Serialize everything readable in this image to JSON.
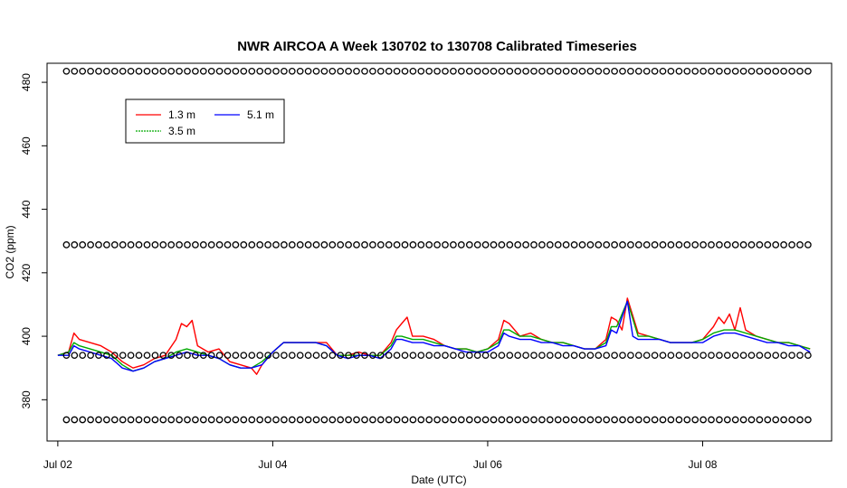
{
  "chart_data": {
    "type": "line",
    "title": "NWR AIRCOA A  Week 130702 to 130708  Calibrated Timeseries",
    "xlabel": "Date (UTC)",
    "ylabel": "CO2 (ppm)",
    "xlim": [
      -0.1,
      7.2
    ],
    "ylim": [
      367,
      486
    ],
    "x_ticks": [
      0,
      2,
      4,
      6
    ],
    "x_tick_labels": [
      "Jul 02",
      "Jul 04",
      "Jul 06",
      "Jul 08"
    ],
    "y_ticks": [
      380,
      400,
      420,
      440,
      460,
      480
    ],
    "y_tick_labels": [
      "380",
      "400",
      "420",
      "440",
      "460",
      "480"
    ],
    "legend": {
      "position": "top-left",
      "entries": [
        {
          "label": "1.3 m",
          "color": "#ff0000"
        },
        {
          "label": "3.5 m",
          "color": "#00aa00"
        },
        {
          "label": "5.1 m",
          "color": "#0000ff"
        }
      ]
    },
    "series": [
      {
        "name": "1.3 m",
        "color": "#ff0000",
        "points": [
          [
            0.0,
            394
          ],
          [
            0.1,
            395
          ],
          [
            0.15,
            401
          ],
          [
            0.2,
            399
          ],
          [
            0.3,
            398
          ],
          [
            0.4,
            397
          ],
          [
            0.5,
            395
          ],
          [
            0.6,
            392
          ],
          [
            0.7,
            390
          ],
          [
            0.8,
            391
          ],
          [
            0.9,
            393
          ],
          [
            1.0,
            394
          ],
          [
            1.1,
            399
          ],
          [
            1.15,
            404
          ],
          [
            1.2,
            403
          ],
          [
            1.25,
            405
          ],
          [
            1.3,
            397
          ],
          [
            1.4,
            395
          ],
          [
            1.5,
            396
          ],
          [
            1.6,
            392
          ],
          [
            1.7,
            391
          ],
          [
            1.8,
            390
          ],
          [
            1.85,
            388
          ],
          [
            1.9,
            391
          ],
          [
            2.0,
            395
          ],
          [
            2.1,
            398
          ],
          [
            2.2,
            398
          ],
          [
            2.3,
            398
          ],
          [
            2.4,
            398
          ],
          [
            2.5,
            398
          ],
          [
            2.6,
            394
          ],
          [
            2.7,
            394
          ],
          [
            2.8,
            395
          ],
          [
            2.9,
            394
          ],
          [
            3.0,
            394
          ],
          [
            3.1,
            398
          ],
          [
            3.15,
            402
          ],
          [
            3.2,
            404
          ],
          [
            3.25,
            406
          ],
          [
            3.3,
            400
          ],
          [
            3.4,
            400
          ],
          [
            3.5,
            399
          ],
          [
            3.6,
            397
          ],
          [
            3.7,
            396
          ],
          [
            3.8,
            396
          ],
          [
            3.9,
            395
          ],
          [
            4.0,
            396
          ],
          [
            4.1,
            399
          ],
          [
            4.15,
            405
          ],
          [
            4.2,
            404
          ],
          [
            4.3,
            400
          ],
          [
            4.4,
            401
          ],
          [
            4.5,
            399
          ],
          [
            4.6,
            398
          ],
          [
            4.7,
            398
          ],
          [
            4.8,
            397
          ],
          [
            4.9,
            396
          ],
          [
            5.0,
            396
          ],
          [
            5.1,
            399
          ],
          [
            5.15,
            406
          ],
          [
            5.2,
            405
          ],
          [
            5.25,
            402
          ],
          [
            5.3,
            412
          ],
          [
            5.4,
            401
          ],
          [
            5.5,
            400
          ],
          [
            5.6,
            399
          ],
          [
            5.7,
            398
          ],
          [
            5.8,
            398
          ],
          [
            5.9,
            398
          ],
          [
            6.0,
            399
          ],
          [
            6.1,
            403
          ],
          [
            6.15,
            406
          ],
          [
            6.2,
            404
          ],
          [
            6.25,
            407
          ],
          [
            6.3,
            402
          ],
          [
            6.35,
            409
          ],
          [
            6.4,
            402
          ],
          [
            6.5,
            400
          ],
          [
            6.6,
            399
          ],
          [
            6.7,
            398
          ],
          [
            6.8,
            398
          ],
          [
            6.9,
            397
          ],
          [
            7.0,
            396
          ]
        ]
      },
      {
        "name": "3.5 m",
        "color": "#00aa00",
        "points": [
          [
            0.0,
            394
          ],
          [
            0.1,
            395
          ],
          [
            0.15,
            398
          ],
          [
            0.2,
            397
          ],
          [
            0.3,
            396
          ],
          [
            0.4,
            395
          ],
          [
            0.5,
            394
          ],
          [
            0.6,
            391
          ],
          [
            0.7,
            389
          ],
          [
            0.8,
            390
          ],
          [
            0.9,
            392
          ],
          [
            1.0,
            393
          ],
          [
            1.1,
            395
          ],
          [
            1.2,
            396
          ],
          [
            1.3,
            395
          ],
          [
            1.4,
            394
          ],
          [
            1.5,
            393
          ],
          [
            1.6,
            391
          ],
          [
            1.7,
            390
          ],
          [
            1.8,
            390
          ],
          [
            1.9,
            392
          ],
          [
            2.0,
            395
          ],
          [
            2.1,
            398
          ],
          [
            2.2,
            398
          ],
          [
            2.3,
            398
          ],
          [
            2.4,
            398
          ],
          [
            2.5,
            397
          ],
          [
            2.6,
            394
          ],
          [
            2.7,
            394
          ],
          [
            2.8,
            394
          ],
          [
            2.9,
            394
          ],
          [
            3.0,
            394
          ],
          [
            3.1,
            397
          ],
          [
            3.15,
            400
          ],
          [
            3.2,
            400
          ],
          [
            3.3,
            399
          ],
          [
            3.4,
            399
          ],
          [
            3.5,
            398
          ],
          [
            3.6,
            397
          ],
          [
            3.7,
            396
          ],
          [
            3.8,
            396
          ],
          [
            3.9,
            395
          ],
          [
            4.0,
            396
          ],
          [
            4.1,
            398
          ],
          [
            4.15,
            402
          ],
          [
            4.2,
            402
          ],
          [
            4.3,
            400
          ],
          [
            4.4,
            400
          ],
          [
            4.5,
            399
          ],
          [
            4.6,
            398
          ],
          [
            4.7,
            398
          ],
          [
            4.8,
            397
          ],
          [
            4.9,
            396
          ],
          [
            5.0,
            396
          ],
          [
            5.1,
            398
          ],
          [
            5.15,
            403
          ],
          [
            5.2,
            403
          ],
          [
            5.3,
            411
          ],
          [
            5.4,
            400
          ],
          [
            5.5,
            400
          ],
          [
            5.6,
            399
          ],
          [
            5.7,
            398
          ],
          [
            5.8,
            398
          ],
          [
            5.9,
            398
          ],
          [
            6.0,
            399
          ],
          [
            6.1,
            401
          ],
          [
            6.2,
            402
          ],
          [
            6.3,
            402
          ],
          [
            6.4,
            401
          ],
          [
            6.5,
            400
          ],
          [
            6.6,
            399
          ],
          [
            6.7,
            398
          ],
          [
            6.8,
            398
          ],
          [
            6.9,
            397
          ],
          [
            7.0,
            396
          ]
        ]
      },
      {
        "name": "5.1 m",
        "color": "#0000ff",
        "points": [
          [
            0.0,
            394
          ],
          [
            0.1,
            394
          ],
          [
            0.15,
            397
          ],
          [
            0.2,
            396
          ],
          [
            0.3,
            395
          ],
          [
            0.4,
            394
          ],
          [
            0.5,
            393
          ],
          [
            0.6,
            390
          ],
          [
            0.7,
            389
          ],
          [
            0.8,
            390
          ],
          [
            0.9,
            392
          ],
          [
            1.0,
            393
          ],
          [
            1.1,
            394
          ],
          [
            1.2,
            395
          ],
          [
            1.3,
            394
          ],
          [
            1.4,
            394
          ],
          [
            1.5,
            393
          ],
          [
            1.6,
            391
          ],
          [
            1.7,
            390
          ],
          [
            1.8,
            390
          ],
          [
            1.9,
            391
          ],
          [
            2.0,
            395
          ],
          [
            2.1,
            398
          ],
          [
            2.2,
            398
          ],
          [
            2.3,
            398
          ],
          [
            2.4,
            398
          ],
          [
            2.5,
            397
          ],
          [
            2.6,
            394
          ],
          [
            2.7,
            393
          ],
          [
            2.8,
            394
          ],
          [
            2.9,
            394
          ],
          [
            3.0,
            393
          ],
          [
            3.1,
            396
          ],
          [
            3.15,
            399
          ],
          [
            3.2,
            399
          ],
          [
            3.3,
            398
          ],
          [
            3.4,
            398
          ],
          [
            3.5,
            397
          ],
          [
            3.6,
            397
          ],
          [
            3.7,
            396
          ],
          [
            3.8,
            395
          ],
          [
            3.9,
            395
          ],
          [
            4.0,
            395
          ],
          [
            4.1,
            397
          ],
          [
            4.15,
            401
          ],
          [
            4.2,
            400
          ],
          [
            4.3,
            399
          ],
          [
            4.4,
            399
          ],
          [
            4.5,
            398
          ],
          [
            4.6,
            398
          ],
          [
            4.7,
            397
          ],
          [
            4.8,
            397
          ],
          [
            4.9,
            396
          ],
          [
            5.0,
            396
          ],
          [
            5.1,
            397
          ],
          [
            5.15,
            402
          ],
          [
            5.2,
            401
          ],
          [
            5.3,
            411
          ],
          [
            5.35,
            400
          ],
          [
            5.4,
            399
          ],
          [
            5.5,
            399
          ],
          [
            5.6,
            399
          ],
          [
            5.7,
            398
          ],
          [
            5.8,
            398
          ],
          [
            5.9,
            398
          ],
          [
            6.0,
            398
          ],
          [
            6.1,
            400
          ],
          [
            6.2,
            401
          ],
          [
            6.3,
            401
          ],
          [
            6.4,
            400
          ],
          [
            6.5,
            399
          ],
          [
            6.6,
            398
          ],
          [
            6.7,
            398
          ],
          [
            6.8,
            397
          ],
          [
            6.9,
            397
          ],
          [
            7.0,
            395
          ]
        ]
      },
      {
        "name": "",
        "color": "#000000",
        "marker": "circle",
        "x_start": 0.08,
        "x_end": 6.98,
        "x_step": 0.075,
        "levels": [
          483.5,
          428.8,
          394.0,
          373.7
        ]
      }
    ]
  }
}
